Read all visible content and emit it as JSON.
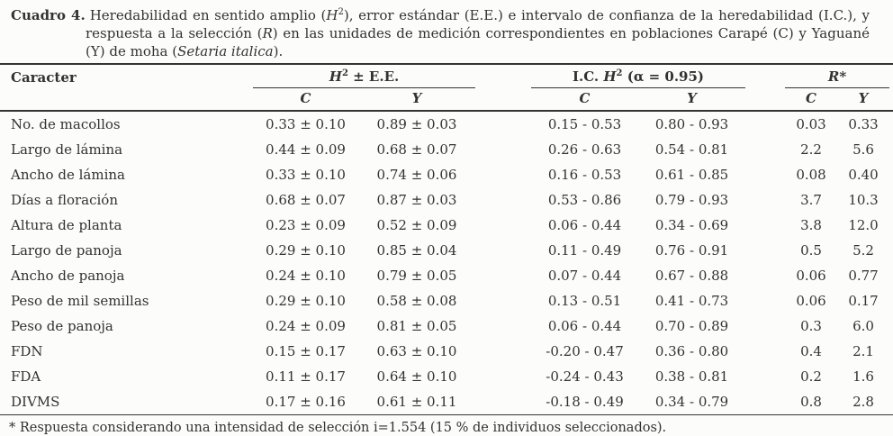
{
  "caption": {
    "label": "Cuadro 4.",
    "part1": "Heredabilidad en sentido amplio (",
    "h_symbol": "H",
    "h_sup": "2",
    "part2": "), error estándar (E.E.) e intervalo de confianza de la heredabilidad (I.C.), y respuesta a la selección (",
    "r_symbol": "R",
    "part3": ") en las unidades de medición correspondientes en poblaciones Carapé (C) y Yaguané (Y) de moha (",
    "species": "Setaria italica",
    "part4": ")."
  },
  "table": {
    "col_caracter": "Caracter",
    "groups": {
      "h2ee": {
        "h": "H",
        "sup": "2",
        "rest": " ± E.E."
      },
      "ic": {
        "pre": "I.C. ",
        "h": "H",
        "sup": "2",
        "rest": " (α = 0.95)"
      },
      "r": {
        "label": "R",
        "star": "*"
      }
    },
    "subheaders": {
      "c": "C",
      "y": "Y"
    },
    "rows": [
      {
        "caracter": "No. de macollos",
        "h2_c": "0.33 ± 0.10",
        "h2_y": "0.89 ± 0.03",
        "ic_c": "0.15 - 0.53",
        "ic_y": "0.80 - 0.93",
        "r_c": "0.03",
        "r_y": "0.33"
      },
      {
        "caracter": "Largo de lámina",
        "h2_c": "0.44 ± 0.09",
        "h2_y": "0.68 ± 0.07",
        "ic_c": "0.26 - 0.63",
        "ic_y": "0.54 - 0.81",
        "r_c": "2.2",
        "r_y": "5.6"
      },
      {
        "caracter": "Ancho de lámina",
        "h2_c": "0.33 ± 0.10",
        "h2_y": "0.74 ± 0.06",
        "ic_c": "0.16 - 0.53",
        "ic_y": "0.61 - 0.85",
        "r_c": "0.08",
        "r_y": "0.40"
      },
      {
        "caracter": "Días a floración",
        "h2_c": "0.68 ± 0.07",
        "h2_y": "0.87 ± 0.03",
        "ic_c": "0.53 - 0.86",
        "ic_y": "0.79 - 0.93",
        "r_c": "3.7",
        "r_y": "10.3"
      },
      {
        "caracter": "Altura de planta",
        "h2_c": "0.23 ± 0.09",
        "h2_y": "0.52 ± 0.09",
        "ic_c": "0.06 - 0.44",
        "ic_y": "0.34 - 0.69",
        "r_c": "3.8",
        "r_y": "12.0"
      },
      {
        "caracter": "Largo de panoja",
        "h2_c": "0.29 ± 0.10",
        "h2_y": "0.85 ± 0.04",
        "ic_c": "0.11 - 0.49",
        "ic_y": "0.76 - 0.91",
        "r_c": "0.5",
        "r_y": "5.2"
      },
      {
        "caracter": "Ancho de panoja",
        "h2_c": "0.24 ± 0.10",
        "h2_y": "0.79 ± 0.05",
        "ic_c": "0.07 - 0.44",
        "ic_y": "0.67 - 0.88",
        "r_c": "0.06",
        "r_y": "0.77"
      },
      {
        "caracter": "Peso de mil semillas",
        "h2_c": "0.29 ± 0.10",
        "h2_y": "0.58 ± 0.08",
        "ic_c": "0.13 - 0.51",
        "ic_y": "0.41 - 0.73",
        "r_c": "0.06",
        "r_y": "0.17"
      },
      {
        "caracter": "Peso de panoja",
        "h2_c": "0.24 ± 0.09",
        "h2_y": "0.81 ± 0.05",
        "ic_c": "0.06 - 0.44",
        "ic_y": "0.70 - 0.89",
        "r_c": "0.3",
        "r_y": "6.0"
      },
      {
        "caracter": "FDN",
        "h2_c": "0.15 ± 0.17",
        "h2_y": "0.63 ± 0.10",
        "ic_c": "-0.20 - 0.47",
        "ic_y": "0.36 - 0.80",
        "r_c": "0.4",
        "r_y": "2.1"
      },
      {
        "caracter": "FDA",
        "h2_c": "0.11 ± 0.17",
        "h2_y": "0.64 ± 0.10",
        "ic_c": "-0.24 - 0.43",
        "ic_y": "0.38 - 0.81",
        "r_c": "0.2",
        "r_y": "1.6"
      },
      {
        "caracter": "DIVMS",
        "h2_c": "0.17 ± 0.16",
        "h2_y": "0.61 ± 0.11",
        "ic_c": "-0.18 - 0.49",
        "ic_y": "0.34 - 0.79",
        "r_c": "0.8",
        "r_y": "2.8"
      }
    ]
  },
  "footnote": "* Respuesta considerando una intensidad de selección i=1.554 (15 % de individuos seleccionados)."
}
